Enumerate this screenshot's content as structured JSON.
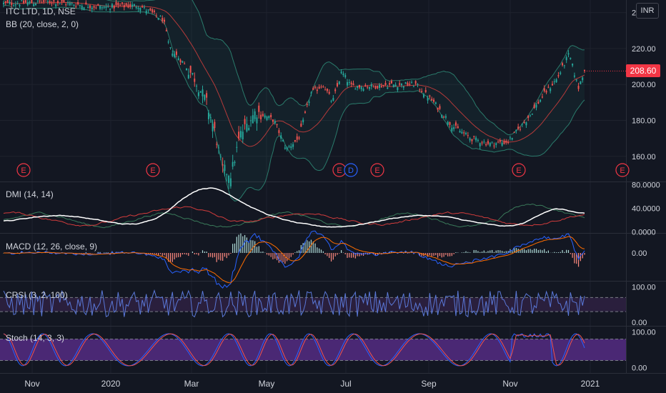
{
  "header": {
    "symbol": "ITC LTD, 1D, NSE",
    "bb_label": "BB (20, close, 2, 0)"
  },
  "currency_button": "INR",
  "last_price": "208.60",
  "panes": {
    "price": {
      "ticks": [
        "240.00",
        "220.00",
        "200.00",
        "180.00",
        "160.00"
      ],
      "tick_values": [
        240,
        220,
        200,
        180,
        160
      ],
      "ylim": [
        146,
        247
      ],
      "earnings_marker": "E",
      "dividend_marker": "D"
    },
    "dmi": {
      "label": "DMI (14, 14)",
      "ticks": [
        "80.0000",
        "40.0000",
        "0.0000"
      ],
      "tick_values": [
        80,
        40,
        0
      ],
      "ylim": [
        -2,
        84
      ]
    },
    "macd": {
      "label": "MACD (12, 26, close, 9)",
      "ticks": [
        "0.00"
      ],
      "tick_values": [
        0
      ]
    },
    "crsi": {
      "label": "CRSI (3, 2, 100)",
      "ticks": [
        "100.00",
        "0.00"
      ],
      "tick_values": [
        100,
        0
      ],
      "ylim": [
        -10,
        115
      ],
      "bands": [
        70,
        30
      ]
    },
    "stoch": {
      "label": "Stoch (14, 3, 3)",
      "ticks": [
        "100.00",
        "0.00"
      ],
      "tick_values": [
        100,
        0
      ],
      "ylim": [
        -15,
        115
      ],
      "bands": [
        80,
        20
      ]
    }
  },
  "time_axis": [
    "Nov",
    "2020",
    "Mar",
    "May",
    "Jul",
    "Sep",
    "Nov",
    "2021"
  ],
  "colors": {
    "background": "#131722",
    "grid": "#1e222d",
    "up": "#26a69a",
    "down": "#ef5350",
    "bb_band": "#2a7a6b",
    "bb_basis": "#b43a3a",
    "dmi_plus": "#3a7a5a",
    "dmi_minus": "#d23c3c",
    "adx": "#ffffff",
    "macd_line": "#2962ff",
    "signal_line": "#ff6d00",
    "crsi_line": "#5a78d8",
    "crsi_bg": "#2a1f3d",
    "stoch_bg": "#4a2874",
    "stoch_k": "#2962ff",
    "stoch_d": "#ef5350",
    "accent": "#f23645"
  },
  "chart_data": {
    "type": "line",
    "title": "ITC LTD, 1D, NSE",
    "price_path": [
      [
        0,
        245
      ],
      [
        0.08,
        246
      ],
      [
        0.16,
        243
      ],
      [
        0.22,
        244
      ],
      [
        0.26,
        236
      ],
      [
        0.27,
        220
      ],
      [
        0.29,
        213
      ],
      [
        0.31,
        204
      ],
      [
        0.33,
        190
      ],
      [
        0.345,
        172
      ],
      [
        0.355,
        153
      ],
      [
        0.37,
        150
      ],
      [
        0.385,
        172
      ],
      [
        0.41,
        185
      ],
      [
        0.44,
        180
      ],
      [
        0.46,
        164
      ],
      [
        0.48,
        170
      ],
      [
        0.5,
        195
      ],
      [
        0.52,
        200
      ],
      [
        0.535,
        190
      ],
      [
        0.55,
        207
      ],
      [
        0.565,
        199
      ],
      [
        0.6,
        199
      ],
      [
        0.64,
        200
      ],
      [
        0.67,
        200
      ],
      [
        0.7,
        190
      ],
      [
        0.73,
        177
      ],
      [
        0.76,
        170
      ],
      [
        0.79,
        167
      ],
      [
        0.82,
        168
      ],
      [
        0.85,
        180
      ],
      [
        0.88,
        195
      ],
      [
        0.9,
        203
      ],
      [
        0.92,
        217
      ],
      [
        0.935,
        198
      ],
      [
        0.945,
        208.6
      ]
    ]
  }
}
